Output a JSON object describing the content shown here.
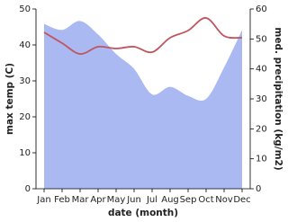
{
  "chart_data": {
    "type": "line-area",
    "x_label": "date (month)",
    "y_label": "max temp (C)",
    "y2_label": "med. precipitation (kg/m2)",
    "categories": [
      "Jan",
      "Feb",
      "Mar",
      "Apr",
      "May",
      "Jun",
      "Jul",
      "Aug",
      "Sep",
      "Oct",
      "Nov",
      "Dec"
    ],
    "series": [
      {
        "name": "max temp",
        "color": "#c0555e",
        "axis": "y",
        "kind": "line",
        "values": [
          43.5,
          40.5,
          37.5,
          39.5,
          39,
          39.5,
          38,
          42,
          44,
          47.5,
          42.5,
          42
        ]
      },
      {
        "name": "med. precipitation",
        "color": "#aab9f1",
        "axis": "y2",
        "kind": "area",
        "values": [
          55,
          53,
          56,
          51.5,
          45,
          40,
          31.5,
          34,
          31,
          30,
          40.5,
          53
        ]
      }
    ],
    "ylim": [
      0,
      50
    ],
    "yticks": [
      0,
      10,
      20,
      30,
      40,
      50
    ],
    "y2lim": [
      0,
      60
    ],
    "y2ticks": [
      0,
      10,
      20,
      30,
      40,
      50,
      60
    ]
  }
}
